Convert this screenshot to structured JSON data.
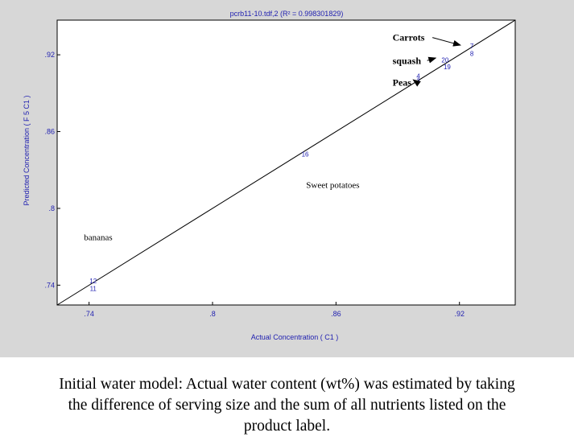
{
  "chart_data": {
    "type": "scatter",
    "title": "pcrb11-10.tdf,2  (R² = 0.998301829)",
    "xlabel": "Actual Concentration  ( C1 )",
    "ylabel": "Predicted Concentration  ( F 5 C1 )",
    "x_ticks": [
      0.74,
      0.8,
      0.86,
      0.92
    ],
    "x_tick_labels": [
      ".74",
      ".8",
      ".86",
      ".92"
    ],
    "y_ticks": [
      0.74,
      0.8,
      0.86,
      0.92
    ],
    "y_tick_labels": [
      ".74",
      ".8",
      ".86",
      ".92"
    ],
    "xlim": [
      0.7245,
      0.9471
    ],
    "ylim": [
      0.7245,
      0.9471
    ],
    "fit_line": {
      "x": [
        0.7245,
        0.9471
      ],
      "y": [
        0.7245,
        0.9471
      ]
    },
    "points": [
      {
        "label": "12",
        "x": 0.742,
        "y": 0.7435,
        "color": "#1f1fb0"
      },
      {
        "label": "11",
        "x": 0.742,
        "y": 0.7375,
        "color": "#1f1fb0"
      },
      {
        "label": "16",
        "x": 0.845,
        "y": 0.8425,
        "color": "#1f1fb0"
      },
      {
        "label": "4",
        "x": 0.9,
        "y": 0.9035,
        "color": "#1f1fb0"
      },
      {
        "label": "3",
        "x": 0.9,
        "y": 0.8995,
        "color": "#1f1fb0"
      },
      {
        "label": "20",
        "x": 0.913,
        "y": 0.916,
        "color": "#1f1fb0"
      },
      {
        "label": "19",
        "x": 0.914,
        "y": 0.9105,
        "color": "#1f1fb0"
      },
      {
        "label": "7",
        "x": 0.926,
        "y": 0.927,
        "color": "#1f1fb0"
      },
      {
        "label": "8",
        "x": 0.926,
        "y": 0.921,
        "color": "#1f1fb0"
      }
    ],
    "annotations": [
      {
        "text": "Carrots",
        "x": 0.8875,
        "y": 0.9335,
        "bold": true,
        "arrow": true,
        "arrow_to": {
          "x": 0.9205,
          "y": 0.9275
        }
      },
      {
        "text": "squash",
        "x": 0.8875,
        "y": 0.9155,
        "bold": true,
        "arrow": true,
        "arrow_to": {
          "x": 0.9085,
          "y": 0.9175
        }
      },
      {
        "text": "Peas",
        "x": 0.8875,
        "y": 0.8985,
        "bold": true,
        "arrow": true,
        "arrow_to": {
          "x": 0.8975,
          "y": 0.9005
        }
      },
      {
        "text": "Sweet potatoes",
        "x": 0.8455,
        "y": 0.8185,
        "bold": false,
        "arrow": false
      },
      {
        "text": "bananas",
        "x": 0.7375,
        "y": 0.7775,
        "bold": false,
        "arrow": false
      }
    ],
    "grid": false
  },
  "caption": {
    "line1": "Initial water model:  Actual water content (wt%) was estimated by taking",
    "line2": "the difference of serving size and the sum of all nutrients listed on the",
    "line3": "product label."
  },
  "colors": {
    "panel_background": "#d7d7d7",
    "plot_background": "#ffffff",
    "blue_text": "#1f1fb0",
    "line": "#000000"
  }
}
